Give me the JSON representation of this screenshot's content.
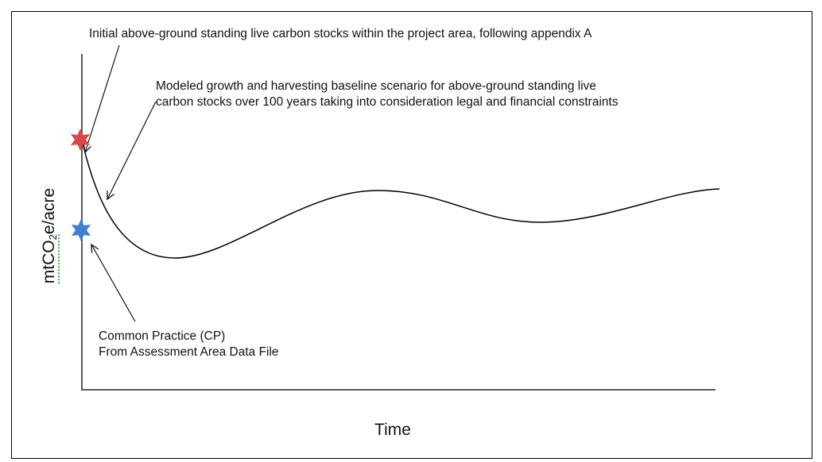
{
  "annotations": {
    "initial_stocks": "Initial above-ground standing live carbon stocks within the project area, following appendix A",
    "modeled_line1": "Modeled growth and harvesting baseline scenario for above-ground standing live",
    "modeled_line2": "carbon stocks over 100 years taking into consideration legal and financial constraints",
    "common_practice_line1": "Common Practice (CP)",
    "common_practice_line2": "From Assessment Area Data File"
  },
  "axes": {
    "y_label_prefix": "mtCO",
    "y_label_subscript": "2",
    "y_label_suffix": "e/acre",
    "x_label": "Time"
  },
  "markers": {
    "initial_stocks": {
      "shape": "star-icon",
      "color": "#d9494b"
    },
    "common_practice": {
      "shape": "star-icon",
      "color": "#3f7fcf"
    }
  },
  "colors": {
    "frame": "#000000",
    "axis": "#5a5a5a",
    "curve": "#000000",
    "spellcheck_underline": "#39a84a"
  }
}
